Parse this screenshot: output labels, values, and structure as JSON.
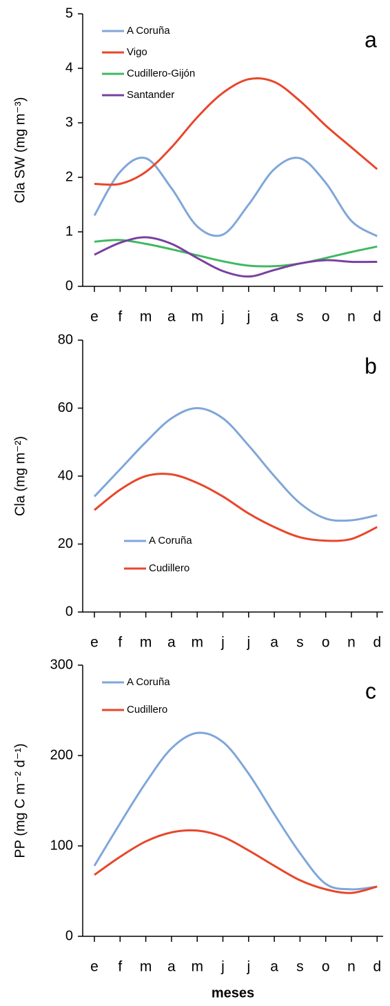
{
  "chart_data": [
    {
      "type": "line",
      "panel_label": "a",
      "y_label": "Cla SW (mg m⁻³)",
      "categories": [
        "e",
        "f",
        "m",
        "a",
        "m",
        "j",
        "j",
        "a",
        "s",
        "o",
        "n",
        "d"
      ],
      "ylim": [
        0,
        5
      ],
      "yticks": [
        0,
        1,
        2,
        3,
        4,
        5
      ],
      "legend": "upper left",
      "series": [
        {
          "name": "A Coruña",
          "color": "#7fa6d9",
          "values": [
            1.3,
            2.1,
            2.35,
            1.8,
            1.1,
            0.95,
            1.5,
            2.15,
            2.35,
            1.9,
            1.2,
            0.92
          ]
        },
        {
          "name": "Vigo",
          "color": "#e8462a",
          "values": [
            1.88,
            1.88,
            2.1,
            2.55,
            3.1,
            3.55,
            3.8,
            3.75,
            3.4,
            2.95,
            2.55,
            2.15
          ]
        },
        {
          "name": "Cudillero-Gijón",
          "color": "#40b860",
          "values": [
            0.82,
            0.85,
            0.78,
            0.68,
            0.57,
            0.46,
            0.38,
            0.37,
            0.42,
            0.52,
            0.63,
            0.73
          ]
        },
        {
          "name": "Santander",
          "color": "#7a3fa0",
          "values": [
            0.58,
            0.8,
            0.9,
            0.78,
            0.52,
            0.28,
            0.18,
            0.3,
            0.42,
            0.48,
            0.45,
            0.45
          ]
        }
      ]
    },
    {
      "type": "line",
      "panel_label": "b",
      "y_label": "Cla (mg m⁻²)",
      "categories": [
        "e",
        "f",
        "m",
        "a",
        "m",
        "j",
        "j",
        "a",
        "s",
        "o",
        "n",
        "d"
      ],
      "ylim": [
        0,
        80
      ],
      "yticks": [
        0,
        20,
        40,
        60,
        80
      ],
      "legend": "lower left",
      "series": [
        {
          "name": "A Coruña",
          "color": "#7fa6d9",
          "values": [
            34,
            42,
            50,
            57,
            60,
            57,
            49,
            40,
            32,
            27.5,
            27,
            28.5
          ]
        },
        {
          "name": "Cudillero",
          "color": "#e8462a",
          "values": [
            30,
            36,
            40,
            40.5,
            38,
            34,
            29,
            25,
            22,
            21,
            21.5,
            25
          ]
        }
      ]
    },
    {
      "type": "line",
      "panel_label": "c",
      "y_label": "PP (mg C m⁻² d⁻¹)",
      "x_label": "meses",
      "categories": [
        "e",
        "f",
        "m",
        "a",
        "m",
        "j",
        "j",
        "a",
        "s",
        "o",
        "n",
        "d"
      ],
      "ylim": [
        0,
        300
      ],
      "yticks": [
        0,
        100,
        200,
        300
      ],
      "legend": "upper left",
      "series": [
        {
          "name": "A Coruña",
          "color": "#7fa6d9",
          "values": [
            78,
            125,
            170,
            208,
            225,
            215,
            180,
            135,
            92,
            58,
            52,
            55
          ]
        },
        {
          "name": "Cudillero",
          "color": "#e8462a",
          "values": [
            68,
            88,
            105,
            115,
            117,
            110,
            95,
            78,
            62,
            52,
            48,
            55
          ]
        }
      ]
    }
  ]
}
